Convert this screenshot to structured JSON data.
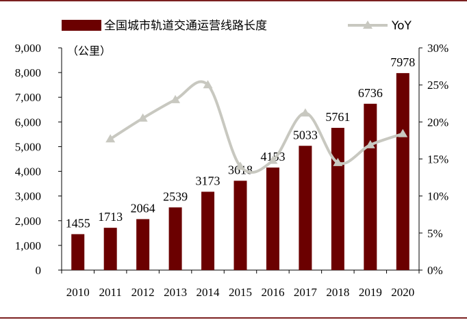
{
  "chart_data": {
    "type": "bar",
    "categories": [
      "2010",
      "2011",
      "2012",
      "2013",
      "2014",
      "2015",
      "2016",
      "2017",
      "2018",
      "2019",
      "2020"
    ],
    "series": [
      {
        "name": "全国城市轨道交通运营线路长度",
        "type": "bar",
        "axis": "left",
        "values": [
          1455,
          1713,
          2064,
          2539,
          3173,
          3618,
          4153,
          5033,
          5761,
          6736,
          7978
        ],
        "data_labels": [
          "1455",
          "1713",
          "2064",
          "2539",
          "3173",
          "3618",
          "4153",
          "5033",
          "5761",
          "6736",
          "7978"
        ],
        "color": "#6B0000"
      },
      {
        "name": "YoY",
        "type": "line",
        "axis": "right",
        "values": [
          null,
          17.7,
          20.5,
          23.0,
          25.0,
          14.0,
          14.8,
          21.2,
          14.5,
          16.9,
          18.4
        ],
        "color": "#C8C8C0",
        "marker": "triangle"
      }
    ],
    "ylabel": "（公里）",
    "ylim": [
      0,
      9000
    ],
    "yticks": [
      "0",
      "1,000",
      "2,000",
      "3,000",
      "4,000",
      "5,000",
      "6,000",
      "7,000",
      "8,000",
      "9,000"
    ],
    "y2lim": [
      0,
      30
    ],
    "y2ticks": [
      "0%",
      "5%",
      "10%",
      "15%",
      "20%",
      "25%",
      "30%"
    ],
    "legend_position": "top",
    "grid": false
  },
  "frame_color": "#7B1F1F"
}
